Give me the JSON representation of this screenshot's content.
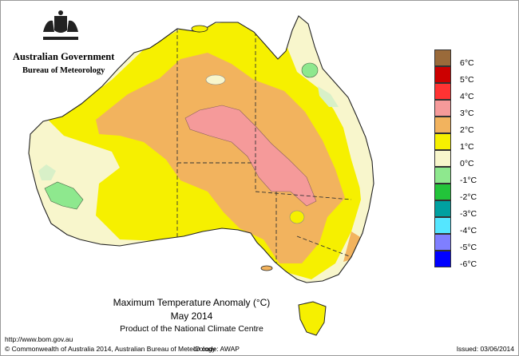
{
  "header": {
    "government": "Australian Government",
    "agency": "Bureau of Meteorology"
  },
  "map": {
    "title": "Maximum Temperature Anomaly (°C)",
    "period": "May 2014",
    "product": "Product of the National Climate Centre"
  },
  "legend": {
    "items": [
      {
        "label": "6°C",
        "color": "#9a6a3a"
      },
      {
        "label": "5°C",
        "color": "#cc0000"
      },
      {
        "label": "4°C",
        "color": "#ff3333"
      },
      {
        "label": "3°C",
        "color": "#f59a9a"
      },
      {
        "label": "2°C",
        "color": "#f2b35e"
      },
      {
        "label": "1°C",
        "color": "#f6f000"
      },
      {
        "label": "0°C",
        "color": "#f8f6cc"
      },
      {
        "label": "-1°C",
        "color": "#8ee88e"
      },
      {
        "label": "-2°C",
        "color": "#22c43a"
      },
      {
        "label": "-3°C",
        "color": "#00a0a0"
      },
      {
        "label": "-4°C",
        "color": "#55e6ff"
      },
      {
        "label": "-5°C",
        "color": "#7f7fff"
      },
      {
        "label": "-6°C",
        "color": "#0000ff"
      }
    ]
  },
  "footer": {
    "url": "http://www.bom.gov.au",
    "copyright": "© Commonwealth of Australia 2014, Australian Bureau of Meteorology",
    "id_code": "ID code: AWAP",
    "issued": "Issued: 03/06/2014"
  }
}
